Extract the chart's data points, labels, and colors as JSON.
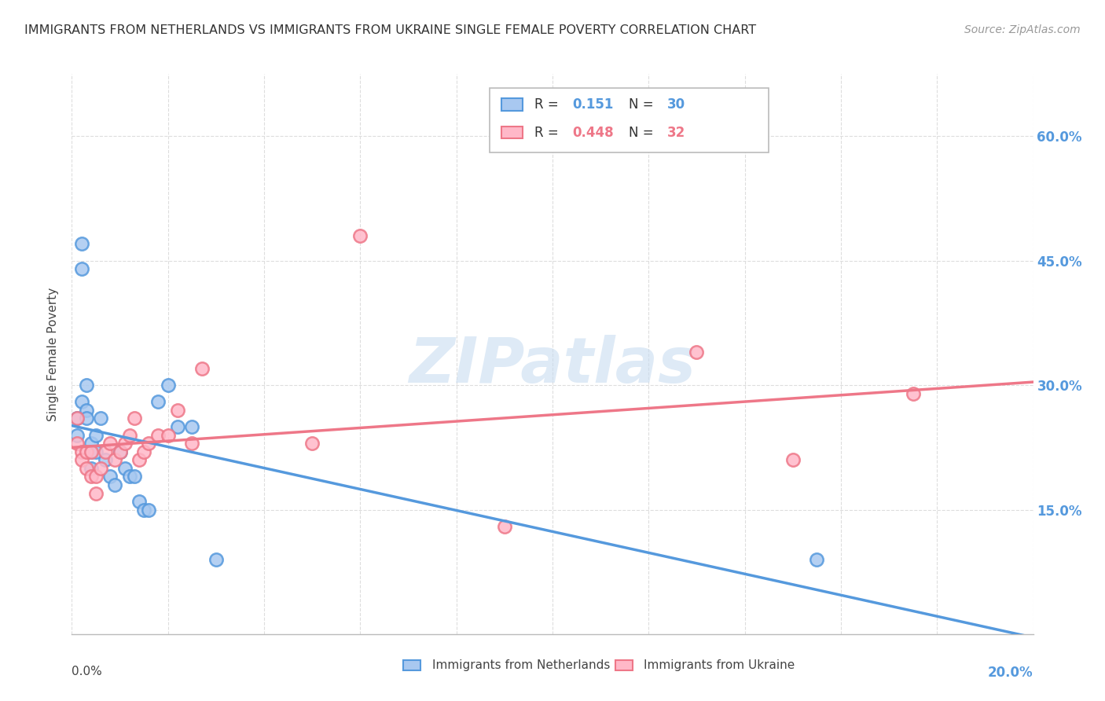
{
  "title": "IMMIGRANTS FROM NETHERLANDS VS IMMIGRANTS FROM UKRAINE SINGLE FEMALE POVERTY CORRELATION CHART",
  "source": "Source: ZipAtlas.com",
  "ylabel": "Single Female Poverty",
  "legend_label1": "Immigrants from Netherlands",
  "legend_label2": "Immigrants from Ukraine",
  "R1": "0.151",
  "N1": "30",
  "R2": "0.448",
  "N2": "32",
  "color_netherlands_fill": "#A8C8F0",
  "color_netherlands_edge": "#5599DD",
  "color_ukraine_fill": "#FFB8C8",
  "color_ukraine_edge": "#EE7788",
  "color_line1": "#5599DD",
  "color_line2": "#EE7788",
  "color_right_axis": "#5599DD",
  "nl_x": [
    0.001,
    0.001,
    0.002,
    0.002,
    0.002,
    0.003,
    0.003,
    0.003,
    0.004,
    0.004,
    0.004,
    0.005,
    0.005,
    0.006,
    0.007,
    0.008,
    0.009,
    0.01,
    0.011,
    0.012,
    0.013,
    0.014,
    0.015,
    0.016,
    0.018,
    0.02,
    0.022,
    0.025,
    0.03,
    0.155
  ],
  "nl_y": [
    0.26,
    0.24,
    0.28,
    0.47,
    0.44,
    0.27,
    0.3,
    0.26,
    0.23,
    0.22,
    0.2,
    0.24,
    0.22,
    0.26,
    0.21,
    0.19,
    0.18,
    0.22,
    0.2,
    0.19,
    0.19,
    0.16,
    0.15,
    0.15,
    0.28,
    0.3,
    0.25,
    0.25,
    0.09,
    0.09
  ],
  "uk_x": [
    0.001,
    0.001,
    0.002,
    0.002,
    0.003,
    0.003,
    0.004,
    0.004,
    0.005,
    0.005,
    0.006,
    0.007,
    0.008,
    0.009,
    0.01,
    0.011,
    0.012,
    0.013,
    0.014,
    0.015,
    0.016,
    0.018,
    0.02,
    0.022,
    0.025,
    0.027,
    0.05,
    0.06,
    0.09,
    0.13,
    0.15,
    0.175
  ],
  "uk_y": [
    0.26,
    0.23,
    0.22,
    0.21,
    0.22,
    0.2,
    0.22,
    0.19,
    0.17,
    0.19,
    0.2,
    0.22,
    0.23,
    0.21,
    0.22,
    0.23,
    0.24,
    0.26,
    0.21,
    0.22,
    0.23,
    0.24,
    0.24,
    0.27,
    0.23,
    0.32,
    0.23,
    0.48,
    0.13,
    0.34,
    0.21,
    0.29
  ],
  "xlim": [
    0.0,
    0.2
  ],
  "ylim": [
    0.0,
    0.675
  ],
  "yticks": [
    0.15,
    0.3,
    0.45,
    0.6
  ],
  "ytick_labels": [
    "15.0%",
    "30.0%",
    "45.0%",
    "60.0%"
  ],
  "background_color": "#FFFFFF",
  "grid_color": "#DDDDDD",
  "watermark": "ZIPatlas"
}
